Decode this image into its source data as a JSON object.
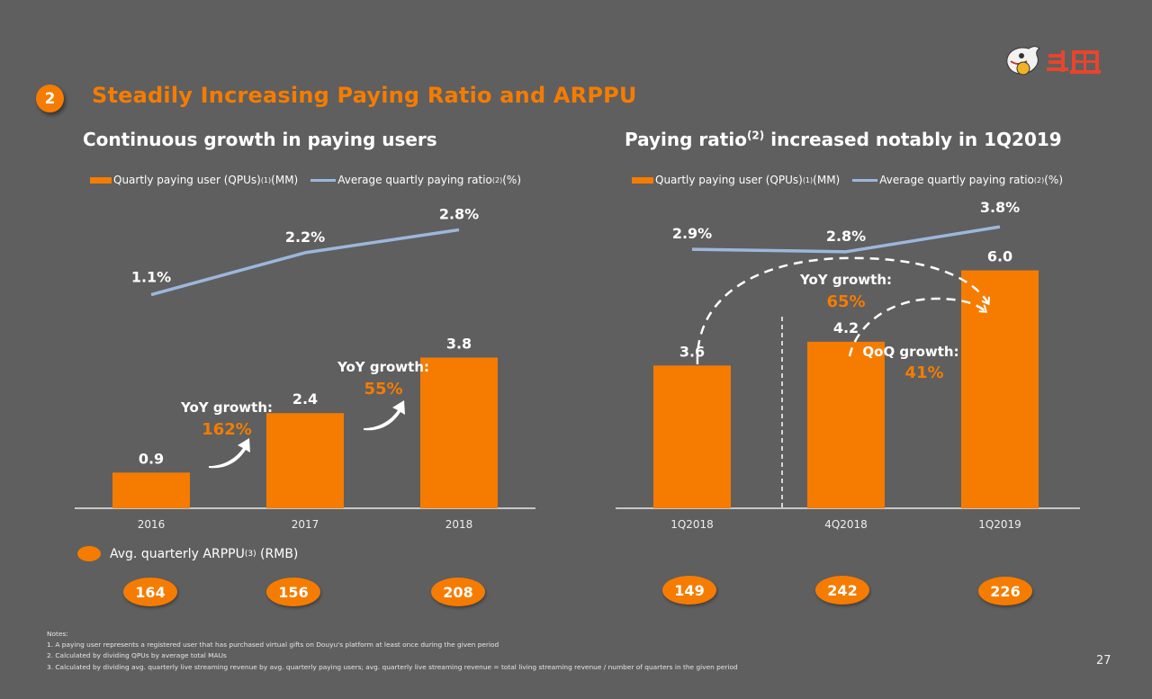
{
  "header": {
    "section_number": "2",
    "title": "Steadily Increasing Paying Ratio and ARPPU",
    "logo_text": "斗鱼"
  },
  "left_panel": {
    "subtitle": "Continuous growth in paying users",
    "legend": {
      "bar_label": "Quartly paying user (QPUs)",
      "bar_sup": "(1)",
      "bar_unit": "(MM)",
      "line_label": "Average quartly paying ratio",
      "line_sup": "(2)",
      "line_unit": "(%)"
    },
    "annotations": [
      {
        "title": "YoY growth:",
        "value": "162%"
      },
      {
        "title": "YoY growth:",
        "value": "55%"
      }
    ],
    "arppu_legend": {
      "label": "Avg. quarterly ARPPU",
      "sup": "(3)",
      "unit": "(RMB)"
    },
    "arppu_values": [
      "164",
      "156",
      "208"
    ]
  },
  "right_panel": {
    "subtitle_pre": "Paying ratio",
    "subtitle_sup": "(2)",
    "subtitle_post": " increased notably in 1Q2019",
    "legend": {
      "bar_label": "Quartly paying user (QPUs)",
      "bar_sup": "(1)",
      "bar_unit": "(MM)",
      "line_label": "Average quartly paying ratio",
      "line_sup": "(2)",
      "line_unit": "(%)"
    },
    "annotations": [
      {
        "title": "YoY growth:",
        "value": "65%"
      },
      {
        "title": "QoQ growth:",
        "value": "41%"
      }
    ],
    "arppu_values": [
      "149",
      "242",
      "226"
    ]
  },
  "notes": {
    "heading": "Notes:",
    "items": [
      "1. A paying user represents a registered user that has purchased virtual gifts on Douyu's platform at least once during the given period",
      "2. Calculated by dividing QPUs by average total MAUs",
      "3. Calculated by dividing avg. quarterly live streaming revenue by avg. quarterly paying users; avg. quarterly live streaming revenue = total living streaming revenue / number of quarters in the given period"
    ]
  },
  "page_number": "27",
  "colors": {
    "background": "#5f5f5f",
    "accent": "#f57c00",
    "line": "#9cb7dc",
    "text": "#ffffff"
  },
  "chart_data": [
    {
      "type": "bar",
      "title": "Continuous growth in paying users",
      "categories": [
        "2016",
        "2017",
        "2018"
      ],
      "series": [
        {
          "name": "Quartly paying user (QPUs)(MM)",
          "type": "bar",
          "values": [
            0.9,
            2.4,
            3.8
          ],
          "labels": [
            "0.9",
            "2.4",
            "3.8"
          ]
        },
        {
          "name": "Average quartly paying ratio(%)",
          "type": "line",
          "values": [
            1.1,
            2.2,
            2.8
          ],
          "labels": [
            "1.1%",
            "2.2%",
            "2.8%"
          ]
        }
      ],
      "xlabel": "",
      "ylabel": "",
      "bar_ylim": [
        0,
        7.6
      ],
      "line_ylim": [
        -4.5,
        3.4
      ],
      "grid": false,
      "legend": "top"
    },
    {
      "type": "bar",
      "title": "Paying ratio(2) increased notably in 1Q2019",
      "categories": [
        "1Q2018",
        "4Q2018",
        "1Q2019"
      ],
      "series": [
        {
          "name": "Quartly paying user (QPUs)(MM)",
          "type": "bar",
          "values": [
            3.6,
            4.2,
            6.0
          ],
          "labels": [
            "3.6",
            "4.2",
            "6.0"
          ]
        },
        {
          "name": "Average quartly paying ratio(%)",
          "type": "line",
          "values": [
            2.9,
            2.8,
            3.8
          ],
          "labels": [
            "2.9%",
            "2.8%",
            "3.8%"
          ]
        }
      ],
      "xlabel": "",
      "ylabel": "",
      "bar_ylim": [
        0,
        7.6
      ],
      "line_ylim": [
        -7.5,
        4.6
      ],
      "grid": false,
      "legend": "top"
    }
  ]
}
